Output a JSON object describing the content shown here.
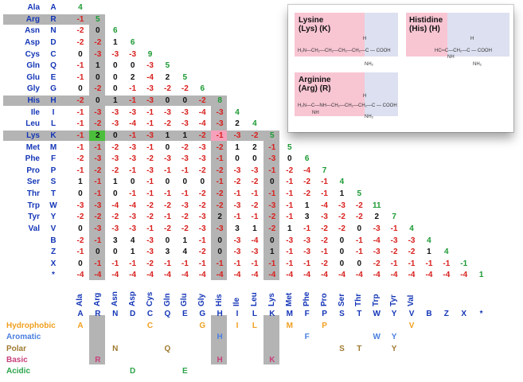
{
  "amino_acids": [
    {
      "name": "Ala",
      "code": "A"
    },
    {
      "name": "Arg",
      "code": "R"
    },
    {
      "name": "Asn",
      "code": "N"
    },
    {
      "name": "Asp",
      "code": "D"
    },
    {
      "name": "Cys",
      "code": "C"
    },
    {
      "name": "Gln",
      "code": "Q"
    },
    {
      "name": "Glu",
      "code": "E"
    },
    {
      "name": "Gly",
      "code": "G"
    },
    {
      "name": "His",
      "code": "H"
    },
    {
      "name": "Ile",
      "code": "I"
    },
    {
      "name": "Leu",
      "code": "L"
    },
    {
      "name": "Lys",
      "code": "K"
    },
    {
      "name": "Met",
      "code": "M"
    },
    {
      "name": "Phe",
      "code": "F"
    },
    {
      "name": "Pro",
      "code": "P"
    },
    {
      "name": "Ser",
      "code": "S"
    },
    {
      "name": "Thr",
      "code": "T"
    },
    {
      "name": "Trp",
      "code": "W"
    },
    {
      "name": "Tyr",
      "code": "Y"
    },
    {
      "name": "Val",
      "code": "V"
    },
    {
      "name": "",
      "code": "B"
    },
    {
      "name": "",
      "code": "Z"
    },
    {
      "name": "",
      "code": "X"
    },
    {
      "name": "",
      "code": "*"
    }
  ],
  "matrix": [
    [
      4
    ],
    [
      -1,
      5
    ],
    [
      -2,
      0,
      6
    ],
    [
      -2,
      -2,
      1,
      6
    ],
    [
      0,
      -3,
      -3,
      -3,
      9
    ],
    [
      -1,
      1,
      0,
      0,
      -3,
      5
    ],
    [
      -1,
      0,
      0,
      2,
      -4,
      2,
      5
    ],
    [
      0,
      -2,
      0,
      -1,
      -3,
      -2,
      -2,
      6
    ],
    [
      -2,
      0,
      1,
      -1,
      -3,
      0,
      0,
      -2,
      8
    ],
    [
      -1,
      -3,
      -3,
      -3,
      -1,
      -3,
      -3,
      -4,
      -3,
      4
    ],
    [
      -1,
      -2,
      -3,
      -4,
      -1,
      -2,
      -3,
      -4,
      -3,
      2,
      4
    ],
    [
      -1,
      2,
      0,
      -1,
      -3,
      1,
      1,
      -2,
      -1,
      -3,
      -2,
      5
    ],
    [
      -1,
      -1,
      -2,
      -3,
      -1,
      0,
      -2,
      -3,
      -2,
      1,
      2,
      -1,
      5
    ],
    [
      -2,
      -3,
      -3,
      -3,
      -2,
      -3,
      -3,
      -3,
      -1,
      0,
      0,
      -3,
      0,
      6
    ],
    [
      -1,
      -2,
      -2,
      -1,
      -3,
      -1,
      -1,
      -2,
      -2,
      -3,
      -3,
      -1,
      -2,
      -4,
      7
    ],
    [
      1,
      -1,
      1,
      0,
      -1,
      0,
      0,
      0,
      -1,
      -2,
      -2,
      0,
      -1,
      -2,
      -1,
      4
    ],
    [
      0,
      -1,
      0,
      -1,
      -1,
      -1,
      -1,
      -2,
      -2,
      -1,
      -1,
      -1,
      -1,
      -2,
      -1,
      1,
      5
    ],
    [
      -3,
      -3,
      -4,
      -4,
      -2,
      -2,
      -3,
      -2,
      -2,
      -3,
      -2,
      -3,
      -1,
      1,
      -4,
      -3,
      -2,
      11
    ],
    [
      -2,
      -2,
      -2,
      -3,
      -2,
      -1,
      -2,
      -3,
      2,
      -1,
      -1,
      -2,
      -1,
      3,
      -3,
      -2,
      -2,
      2,
      7
    ],
    [
      0,
      -3,
      -3,
      -3,
      -1,
      -2,
      -2,
      -3,
      -3,
      3,
      1,
      -2,
      1,
      -1,
      -2,
      -2,
      0,
      -3,
      -1,
      4
    ],
    [
      -2,
      -1,
      3,
      4,
      -3,
      0,
      1,
      -1,
      0,
      -3,
      -4,
      0,
      -3,
      -3,
      -2,
      0,
      -1,
      -4,
      -3,
      -3,
      4
    ],
    [
      -1,
      0,
      0,
      1,
      -3,
      3,
      4,
      -2,
      0,
      -3,
      -3,
      1,
      -1,
      -3,
      -1,
      0,
      -1,
      -3,
      -2,
      -2,
      1,
      4
    ],
    [
      0,
      -1,
      -1,
      -1,
      -2,
      -1,
      -1,
      -1,
      -1,
      -1,
      -1,
      -1,
      -1,
      -1,
      -2,
      0,
      0,
      -2,
      -1,
      -1,
      -1,
      -1,
      -1
    ],
    [
      -4,
      -4,
      -4,
      -4,
      -4,
      -4,
      -4,
      -4,
      -4,
      -4,
      -4,
      -4,
      -4,
      -4,
      -4,
      -4,
      -4,
      -4,
      -4,
      -4,
      -4,
      -4,
      -4,
      1
    ]
  ],
  "properties": {
    "labels": [
      {
        "label": "Hydrophobic",
        "color": "#f0a020"
      },
      {
        "label": "Aromatic",
        "color": "#4a7fe0"
      },
      {
        "label": "Polar",
        "color": "#a07a30"
      },
      {
        "label": "Basic",
        "color": "#c8407a"
      },
      {
        "label": "Acidic",
        "color": "#2ba44a"
      }
    ],
    "members": [
      {
        "row": 0,
        "code": "A",
        "col": 0
      },
      {
        "row": 0,
        "code": "C",
        "col": 4
      },
      {
        "row": 0,
        "code": "G",
        "col": 7
      },
      {
        "row": 0,
        "code": "I",
        "col": 9
      },
      {
        "row": 0,
        "code": "L",
        "col": 10
      },
      {
        "row": 0,
        "code": "M",
        "col": 12
      },
      {
        "row": 0,
        "code": "P",
        "col": 14
      },
      {
        "row": 0,
        "code": "V",
        "col": 19
      },
      {
        "row": 1,
        "code": "H",
        "col": 8
      },
      {
        "row": 1,
        "code": "F",
        "col": 13
      },
      {
        "row": 1,
        "code": "W",
        "col": 17
      },
      {
        "row": 1,
        "code": "Y",
        "col": 18
      },
      {
        "row": 2,
        "code": "N",
        "col": 2
      },
      {
        "row": 2,
        "code": "Q",
        "col": 5
      },
      {
        "row": 2,
        "code": "S",
        "col": 15
      },
      {
        "row": 2,
        "code": "T",
        "col": 16
      },
      {
        "row": 2,
        "code": "Y",
        "col": 18
      },
      {
        "row": 3,
        "code": "R",
        "col": 1
      },
      {
        "row": 3,
        "code": "H",
        "col": 8
      },
      {
        "row": 3,
        "code": "K",
        "col": 11
      },
      {
        "row": 4,
        "code": "D",
        "col": 3
      },
      {
        "row": 4,
        "code": "E",
        "col": 6
      }
    ]
  },
  "inset": {
    "lysine_title": "Lysine\n(Lys) (K)",
    "histidine_title": "Histidine\n(His) (H)",
    "arginine_title": "Arginine\n(Arg) (R)",
    "lysine_chain": "H₂N—CH₂—CH₂—CH₂—CH₂—C — COOH",
    "histidine_chain": "HC═C—CH₂—C — COOH",
    "arginine_chain": "H₂N—C—NH—CH₂—CH₂—CH₂—C — COOH",
    "nh2": "NH₂",
    "h": "H",
    "nh": "NH"
  }
}
